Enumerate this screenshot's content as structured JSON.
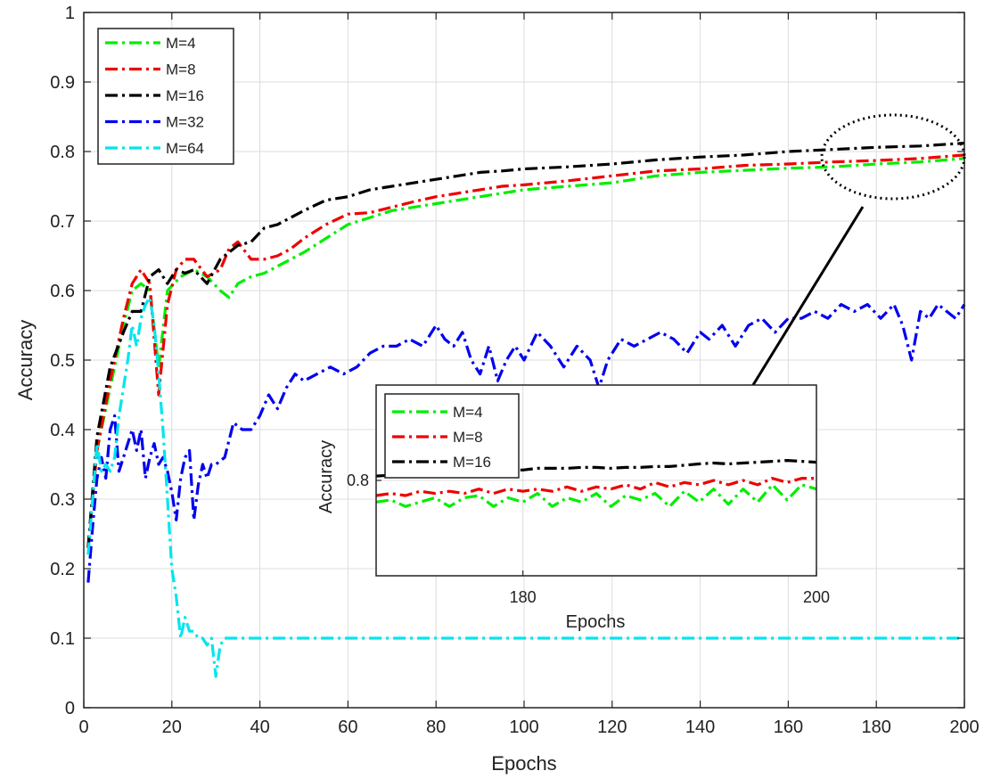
{
  "chart_data": {
    "type": "line",
    "xlabel": "Epochs",
    "ylabel": "Accuracy",
    "xlim": [
      0,
      200
    ],
    "ylim": [
      0,
      1
    ],
    "xticks": [
      0,
      20,
      40,
      60,
      80,
      100,
      120,
      140,
      160,
      180,
      200
    ],
    "yticks": [
      0,
      0.1,
      0.2,
      0.3,
      0.4,
      0.5,
      0.6,
      0.7,
      0.8,
      0.9,
      1
    ],
    "ytick_labels": [
      "0",
      "0.1",
      "0.2",
      "0.3",
      "0.4",
      "0.5",
      "0.6",
      "0.7",
      "0.8",
      "0.9",
      "1"
    ],
    "grid": true,
    "legend": "top-left",
    "series": [
      {
        "name": "M=4",
        "color": "#00ee00",
        "x": [
          1,
          3,
          6,
          9,
          11,
          13,
          15,
          17,
          19,
          22,
          25,
          28,
          31,
          33,
          35,
          38,
          41,
          44,
          47,
          50,
          55,
          60,
          65,
          70,
          75,
          80,
          85,
          90,
          95,
          100,
          110,
          120,
          130,
          140,
          150,
          160,
          170,
          180,
          190,
          200
        ],
        "y": [
          0.23,
          0.37,
          0.46,
          0.55,
          0.6,
          0.61,
          0.6,
          0.49,
          0.6,
          0.62,
          0.63,
          0.62,
          0.6,
          0.59,
          0.61,
          0.62,
          0.625,
          0.635,
          0.645,
          0.655,
          0.675,
          0.695,
          0.705,
          0.715,
          0.72,
          0.725,
          0.73,
          0.735,
          0.74,
          0.745,
          0.75,
          0.755,
          0.765,
          0.77,
          0.773,
          0.776,
          0.778,
          0.782,
          0.785,
          0.79
        ]
      },
      {
        "name": "M=8",
        "color": "#ee0000",
        "x": [
          1,
          3,
          6,
          9,
          11,
          13,
          15,
          17,
          19,
          21,
          23,
          25,
          28,
          31,
          33,
          35,
          38,
          41,
          44,
          47,
          50,
          55,
          60,
          65,
          70,
          75,
          80,
          85,
          90,
          95,
          100,
          110,
          120,
          130,
          140,
          150,
          160,
          170,
          180,
          190,
          200
        ],
        "y": [
          0.23,
          0.37,
          0.47,
          0.56,
          0.61,
          0.63,
          0.61,
          0.45,
          0.58,
          0.63,
          0.645,
          0.645,
          0.62,
          0.63,
          0.66,
          0.67,
          0.645,
          0.645,
          0.65,
          0.66,
          0.675,
          0.695,
          0.71,
          0.712,
          0.72,
          0.728,
          0.735,
          0.74,
          0.745,
          0.75,
          0.752,
          0.758,
          0.765,
          0.772,
          0.775,
          0.78,
          0.782,
          0.785,
          0.787,
          0.79,
          0.795
        ]
      },
      {
        "name": "M=16",
        "color": "#000000",
        "x": [
          1,
          3,
          6,
          9,
          11,
          13,
          15,
          17,
          19,
          21,
          23,
          25,
          28,
          31,
          33,
          35,
          38,
          41,
          44,
          47,
          50,
          55,
          60,
          65,
          70,
          75,
          80,
          85,
          90,
          95,
          100,
          110,
          120,
          130,
          140,
          150,
          160,
          170,
          180,
          190,
          200
        ],
        "y": [
          0.23,
          0.39,
          0.49,
          0.54,
          0.57,
          0.57,
          0.62,
          0.63,
          0.61,
          0.63,
          0.625,
          0.63,
          0.61,
          0.645,
          0.655,
          0.665,
          0.67,
          0.69,
          0.695,
          0.705,
          0.715,
          0.73,
          0.735,
          0.745,
          0.75,
          0.755,
          0.76,
          0.765,
          0.77,
          0.772,
          0.775,
          0.778,
          0.782,
          0.788,
          0.792,
          0.795,
          0.8,
          0.803,
          0.806,
          0.808,
          0.812
        ]
      },
      {
        "name": "M=32",
        "color": "#0000ee",
        "x": [
          1,
          2,
          3,
          4,
          5,
          6,
          7,
          8,
          9,
          10,
          11,
          12,
          13,
          14,
          15,
          16,
          17,
          18,
          19,
          20,
          21,
          22,
          23,
          24,
          25,
          26,
          27,
          28,
          29,
          30,
          32,
          34,
          36,
          38,
          40,
          42,
          44,
          46,
          48,
          50,
          53,
          56,
          59,
          62,
          65,
          68,
          71,
          74,
          77,
          80,
          82,
          84,
          86,
          88,
          90,
          92,
          94,
          96,
          98,
          100,
          103,
          106,
          109,
          112,
          115,
          117,
          119,
          122,
          125,
          128,
          131,
          134,
          137,
          140,
          142,
          145,
          148,
          151,
          154,
          157,
          160,
          163,
          166,
          169,
          172,
          175,
          178,
          181,
          184,
          186,
          188,
          190,
          192,
          194,
          196,
          198,
          200
        ],
        "y": [
          0.18,
          0.26,
          0.33,
          0.36,
          0.33,
          0.4,
          0.42,
          0.34,
          0.36,
          0.38,
          0.4,
          0.37,
          0.4,
          0.33,
          0.36,
          0.38,
          0.35,
          0.36,
          0.34,
          0.31,
          0.27,
          0.33,
          0.36,
          0.37,
          0.27,
          0.32,
          0.35,
          0.33,
          0.35,
          0.35,
          0.36,
          0.41,
          0.4,
          0.4,
          0.42,
          0.45,
          0.43,
          0.46,
          0.48,
          0.47,
          0.48,
          0.49,
          0.48,
          0.49,
          0.51,
          0.52,
          0.52,
          0.53,
          0.52,
          0.55,
          0.53,
          0.52,
          0.54,
          0.5,
          0.48,
          0.52,
          0.47,
          0.5,
          0.52,
          0.5,
          0.54,
          0.52,
          0.49,
          0.52,
          0.5,
          0.46,
          0.5,
          0.53,
          0.52,
          0.53,
          0.54,
          0.53,
          0.51,
          0.54,
          0.53,
          0.55,
          0.52,
          0.55,
          0.56,
          0.54,
          0.56,
          0.56,
          0.57,
          0.56,
          0.58,
          0.57,
          0.58,
          0.56,
          0.58,
          0.55,
          0.5,
          0.57,
          0.56,
          0.58,
          0.57,
          0.56,
          0.58
        ]
      },
      {
        "name": "M=64",
        "color": "#00e5ee",
        "x": [
          1,
          2,
          3,
          4,
          5,
          6,
          7,
          8,
          9,
          10,
          11,
          12,
          13,
          14,
          15,
          16,
          17,
          18,
          19,
          20,
          21,
          22,
          23,
          24,
          25,
          26,
          27,
          28,
          29,
          30,
          31,
          32,
          40,
          60,
          80,
          100,
          120,
          140,
          160,
          180,
          200
        ],
        "y": [
          0.22,
          0.3,
          0.38,
          0.34,
          0.35,
          0.34,
          0.36,
          0.42,
          0.46,
          0.5,
          0.55,
          0.52,
          0.56,
          0.58,
          0.59,
          0.55,
          0.48,
          0.4,
          0.3,
          0.2,
          0.16,
          0.1,
          0.13,
          0.11,
          0.11,
          0.1,
          0.1,
          0.09,
          0.1,
          0.045,
          0.09,
          0.1,
          0.1,
          0.1,
          0.1,
          0.1,
          0.1,
          0.1,
          0.1,
          0.1,
          0.1
        ]
      }
    ],
    "inset": {
      "xlabel": "Epochs",
      "ylabel": "Accuracy",
      "xlim": [
        170,
        200
      ],
      "ylim": [
        0.778,
        0.822
      ],
      "xticks": [
        180,
        200
      ],
      "yticks": [
        0.8
      ],
      "ytick_labels": [
        "0.8"
      ],
      "legend": "top-left",
      "series": [
        {
          "name": "M=4",
          "color": "#00ee00",
          "x": [
            170,
            171,
            172,
            173,
            174,
            175,
            176,
            177,
            178,
            179,
            180,
            181,
            182,
            183,
            184,
            185,
            186,
            187,
            188,
            189,
            190,
            191,
            192,
            193,
            194,
            195,
            196,
            197,
            198,
            199,
            200
          ],
          "y": [
            0.795,
            0.7955,
            0.794,
            0.795,
            0.796,
            0.794,
            0.796,
            0.7965,
            0.794,
            0.796,
            0.795,
            0.797,
            0.794,
            0.796,
            0.795,
            0.797,
            0.794,
            0.7965,
            0.7955,
            0.797,
            0.794,
            0.7975,
            0.795,
            0.798,
            0.7945,
            0.798,
            0.795,
            0.799,
            0.7955,
            0.799,
            0.798
          ]
        },
        {
          "name": "M=8",
          "color": "#ee0000",
          "x": [
            170,
            171,
            172,
            173,
            174,
            175,
            176,
            177,
            178,
            179,
            180,
            181,
            182,
            183,
            184,
            185,
            186,
            187,
            188,
            189,
            190,
            191,
            192,
            193,
            194,
            195,
            196,
            197,
            198,
            199,
            200
          ],
          "y": [
            0.7965,
            0.797,
            0.7965,
            0.7975,
            0.797,
            0.7975,
            0.797,
            0.798,
            0.797,
            0.798,
            0.7975,
            0.798,
            0.7975,
            0.7985,
            0.7975,
            0.7985,
            0.798,
            0.799,
            0.798,
            0.7995,
            0.7985,
            0.7995,
            0.799,
            0.8,
            0.799,
            0.8,
            0.799,
            0.8005,
            0.7995,
            0.8005,
            0.8005
          ]
        },
        {
          "name": "M=16",
          "color": "#000000",
          "x": [
            170,
            171,
            172,
            173,
            174,
            175,
            176,
            177,
            178,
            179,
            180,
            181,
            182,
            183,
            184,
            185,
            186,
            187,
            188,
            189,
            190,
            191,
            192,
            193,
            194,
            195,
            196,
            197,
            198,
            199,
            200
          ],
          "y": [
            0.801,
            0.8012,
            0.8014,
            0.8016,
            0.8018,
            0.8018,
            0.802,
            0.802,
            0.8022,
            0.8024,
            0.8024,
            0.8028,
            0.8028,
            0.8028,
            0.803,
            0.803,
            0.8028,
            0.803,
            0.803,
            0.8032,
            0.8032,
            0.8035,
            0.8038,
            0.804,
            0.8038,
            0.804,
            0.8042,
            0.8044,
            0.8046,
            0.8044,
            0.8042
          ]
        }
      ]
    }
  }
}
